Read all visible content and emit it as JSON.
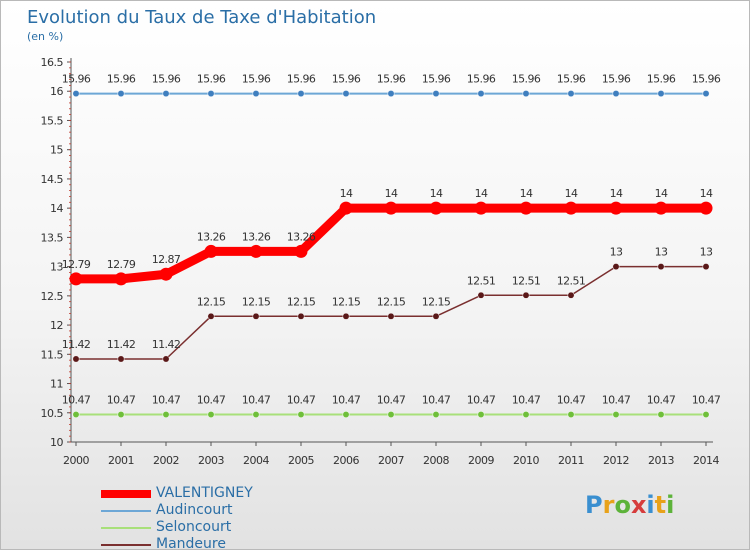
{
  "title": "Evolution du Taux de Taxe d'Habitation",
  "subtitle": "(en %)",
  "logo": {
    "letters": [
      {
        "ch": "P",
        "color": "#3a8fd0"
      },
      {
        "ch": "r",
        "color": "#e8a21a"
      },
      {
        "ch": "o",
        "color": "#5db33a"
      },
      {
        "ch": "x",
        "color": "#d63c3c"
      },
      {
        "ch": "i",
        "color": "#3a8fd0"
      },
      {
        "ch": "t",
        "color": "#e8a21a"
      },
      {
        "ch": "i",
        "color": "#5db33a"
      }
    ]
  },
  "chart_data": {
    "type": "line",
    "x": [
      "2000",
      "2001",
      "2002",
      "2003",
      "2004",
      "2005",
      "2006",
      "2007",
      "2008",
      "2009",
      "2010",
      "2011",
      "2012",
      "2013",
      "2014"
    ],
    "ylim": [
      10,
      16.5
    ],
    "yticks": [
      "10",
      "10.5",
      "11",
      "11.5",
      "12",
      "12.5",
      "13",
      "13.5",
      "14",
      "14.5",
      "15",
      "15.5",
      "16",
      "16.5"
    ],
    "grid": false,
    "legend_position": "bottom-left",
    "series": [
      {
        "name": "VALENTIGNEY",
        "color": "#ff0000",
        "width": 9,
        "values": [
          12.79,
          12.79,
          12.87,
          13.26,
          13.26,
          13.26,
          14,
          14,
          14,
          14,
          14,
          14,
          14,
          14,
          14
        ],
        "labels": [
          "12.79",
          "12.79",
          "12.87",
          "13.26",
          "13.26",
          "13.26",
          "14",
          "14",
          "14",
          "14",
          "14",
          "14",
          "14",
          "14",
          "14"
        ]
      },
      {
        "name": "Audincourt",
        "color": "#6da7d6",
        "marker": "#3f7fbf",
        "width": 2,
        "values": [
          15.96,
          15.96,
          15.96,
          15.96,
          15.96,
          15.96,
          15.96,
          15.96,
          15.96,
          15.96,
          15.96,
          15.96,
          15.96,
          15.96,
          15.96
        ],
        "labels": [
          "15.96",
          "15.96",
          "15.96",
          "15.96",
          "15.96",
          "15.96",
          "15.96",
          "15.96",
          "15.96",
          "15.96",
          "15.96",
          "15.96",
          "15.96",
          "15.96",
          "15.96"
        ]
      },
      {
        "name": "Seloncourt",
        "color": "#a8e07a",
        "marker": "#6fbf3a",
        "width": 2,
        "values": [
          10.47,
          10.47,
          10.47,
          10.47,
          10.47,
          10.47,
          10.47,
          10.47,
          10.47,
          10.47,
          10.47,
          10.47,
          10.47,
          10.47,
          10.47
        ],
        "labels": [
          "10.47",
          "10.47",
          "10.47",
          "10.47",
          "10.47",
          "10.47",
          "10.47",
          "10.47",
          "10.47",
          "10.47",
          "10.47",
          "10.47",
          "10.47",
          "10.47",
          "10.47"
        ]
      },
      {
        "name": "Mandeure",
        "color": "#7a2f2f",
        "marker": "#5a1818",
        "width": 1.5,
        "values": [
          11.42,
          11.42,
          11.42,
          12.15,
          12.15,
          12.15,
          12.15,
          12.15,
          12.15,
          12.51,
          12.51,
          12.51,
          13,
          13,
          13
        ],
        "labels": [
          "11.42",
          "11.42",
          "11.42",
          "12.15",
          "12.15",
          "12.15",
          "12.15",
          "12.15",
          "12.15",
          "12.51",
          "12.51",
          "12.51",
          "13",
          "13",
          "13"
        ]
      }
    ]
  }
}
